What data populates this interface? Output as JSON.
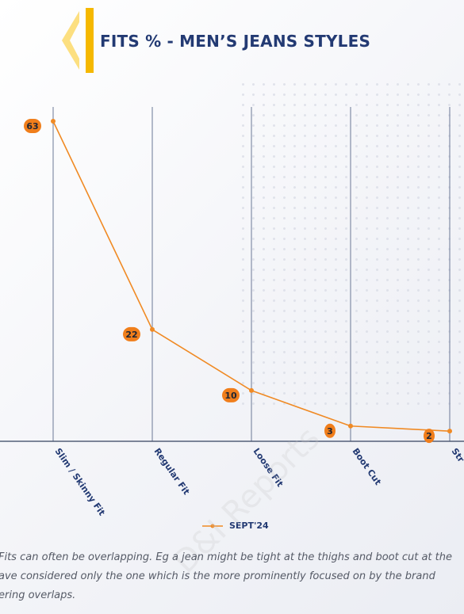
{
  "header": {
    "title": "FITS % - MEN’S JEANS STYLES",
    "accent_colors": [
      "#f5b800",
      "#fbd96a"
    ]
  },
  "watermark": "D&I Reports",
  "chart_data": {
    "type": "line",
    "title": "FITS % - MEN’S JEANS STYLES",
    "categories": [
      "Slim / Skinny Fit",
      "Regular Fit",
      "Loose Fit",
      "Boot Cut",
      "Str"
    ],
    "series": [
      {
        "name": "SEPT'24",
        "values": [
          63,
          22,
          10,
          3,
          2
        ],
        "color": "#f08a24"
      }
    ],
    "ylim": [
      0,
      65
    ],
    "xlabel": "",
    "ylabel": "",
    "grid": "vertical",
    "legend_position": "bottom",
    "label_color": "#f07e1b",
    "axis_color": "#34425f"
  },
  "footnote": {
    "line1": "Fits can often be overlapping. Eg a jean might be tight at the thighs and boot cut at the",
    "line2": "ave considered only the one which is the more prominently focused on by the brand",
    "line3": "ering overlaps."
  }
}
